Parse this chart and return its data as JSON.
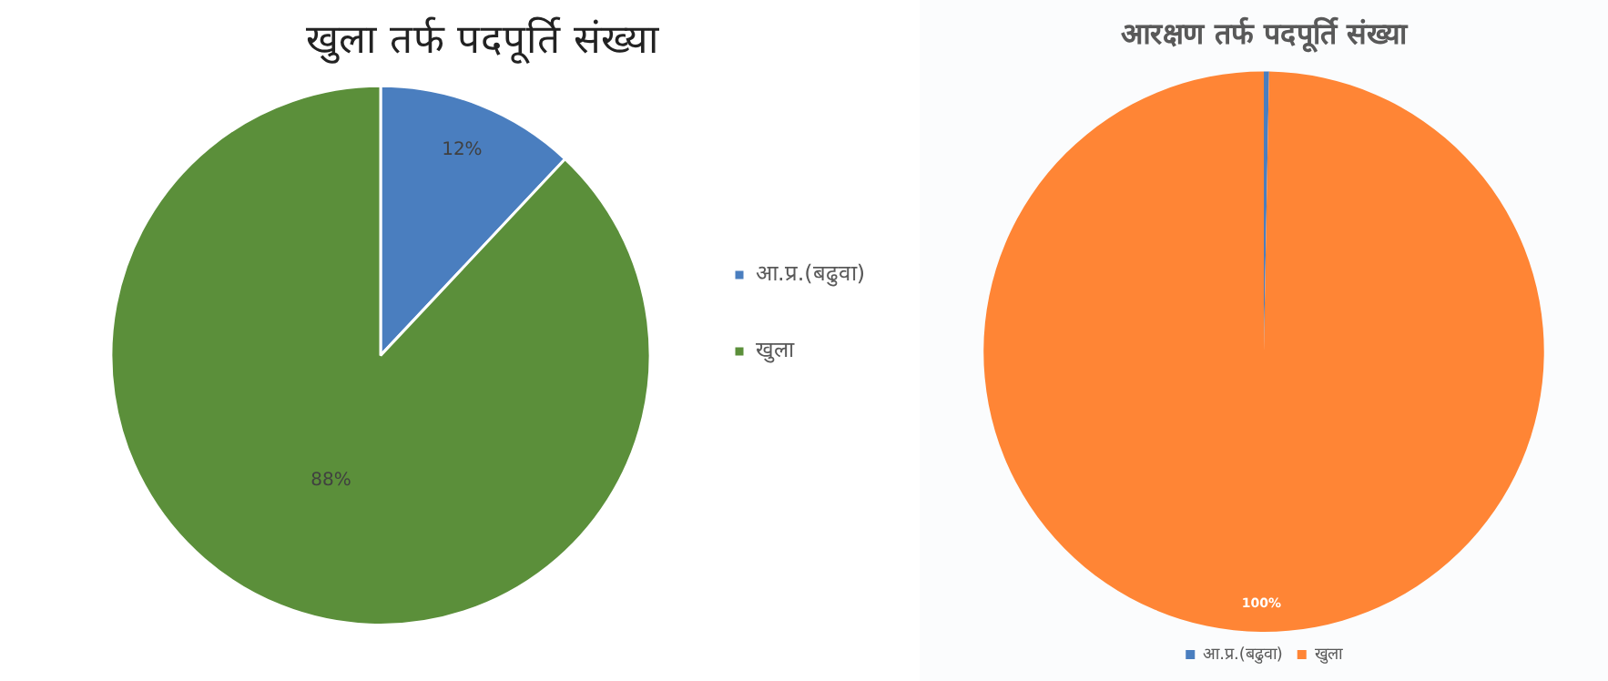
{
  "chart_data": [
    {
      "type": "pie",
      "title": "खुला तर्फ पदपूर्ति संख्या",
      "categories": [
        "आ.प्र.(बढुवा)",
        "खुला"
      ],
      "values": [
        12,
        88
      ],
      "colors": [
        "#4a7ebf",
        "#5b8f3a"
      ],
      "value_labels": [
        "12%",
        "88%"
      ],
      "legend": "right"
    },
    {
      "type": "pie",
      "title": "आरक्षण तर्फ पदपूर्ति संख्या",
      "categories": [
        "आ.प्र.(बढुवा)",
        "खुला"
      ],
      "values": [
        0.3,
        99.7
      ],
      "colors": [
        "#4a7ebf",
        "#ff8535"
      ],
      "value_labels": [
        null,
        "100%"
      ],
      "legend": "bottom"
    }
  ]
}
